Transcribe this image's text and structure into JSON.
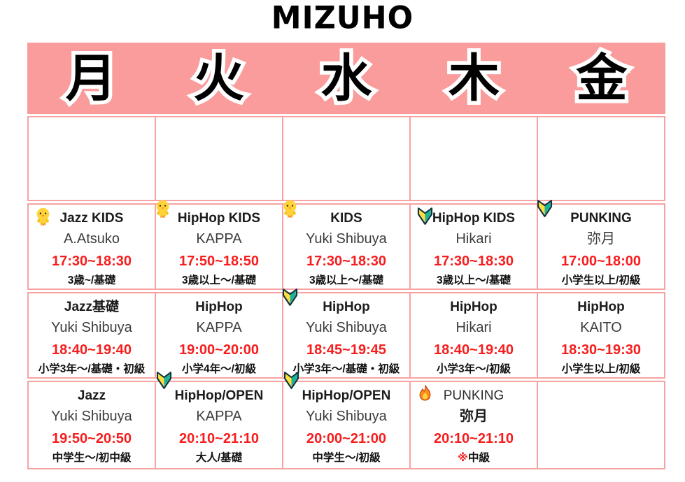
{
  "title": "MIZUHO",
  "days": [
    "月",
    "火",
    "水",
    "木",
    "金"
  ],
  "colors": {
    "banner_pink": "#FA9C9C",
    "grid_border_pink": "#F9A2A2",
    "time_red": "#F71D1D"
  },
  "schedule": {
    "rows": [
      {
        "cells": [
          {},
          {},
          {},
          {},
          {}
        ]
      },
      {
        "cells": [
          {
            "icon": "chick",
            "icon_pos": "in",
            "title": "Jazz KIDS",
            "instructor": "A.Atsuko",
            "time": "17:30~18:30",
            "level": "3歳~/基礎"
          },
          {
            "icon": "chick",
            "icon_pos": "corner",
            "title": "HipHop KIDS",
            "instructor": "KAPPA",
            "time": "17:50~18:50",
            "level": "3歳以上〜/基礎"
          },
          {
            "icon": "chick",
            "icon_pos": "corner",
            "title": "KIDS",
            "instructor": "Yuki Shibuya",
            "time": "17:30~18:30",
            "level": "3歳以上〜/基礎"
          },
          {
            "icon": "beginner",
            "icon_pos": "in",
            "title": "HipHop KIDS",
            "instructor": "Hikari",
            "time": "17:30~18:30",
            "level": "3歳以上〜/基礎"
          },
          {
            "icon": "beginner",
            "icon_pos": "corner",
            "title": "PUNKING",
            "instructor": "弥月",
            "time": "17:00~18:00",
            "level": "小学生以上/初級"
          }
        ]
      },
      {
        "cells": [
          {
            "title": "Jazz基礎",
            "instructor": "Yuki Shibuya",
            "time": "18:40~19:40",
            "level": "小学3年〜/基礎・初級"
          },
          {
            "title": "HipHop",
            "instructor": "KAPPA",
            "time": "19:00~20:00",
            "level": "小学4年〜/初級"
          },
          {
            "icon": "beginner",
            "icon_pos": "corner",
            "title": "HipHop",
            "instructor": "Yuki Shibuya",
            "time": "18:45~19:45",
            "level": "小学3年〜/基礎・初級"
          },
          {
            "title": "HipHop",
            "instructor": "Hikari",
            "time": "18:40~19:40",
            "level": "小学3年〜/初級"
          },
          {
            "title": "HipHop",
            "instructor": "KAITO",
            "time": "18:30~19:30",
            "level": "小学生以上/初級"
          }
        ]
      },
      {
        "cells": [
          {
            "title": "Jazz",
            "instructor": "Yuki Shibuya",
            "time": "19:50~20:50",
            "level": "中学生〜/初中級"
          },
          {
            "icon": "beginner",
            "icon_pos": "raised",
            "title": "HipHop/OPEN",
            "instructor": "KAPPA",
            "time": "20:10~21:10",
            "level": "大人/基礎"
          },
          {
            "icon": "beginner",
            "icon_pos": "raised",
            "title": "HipHop/OPEN",
            "instructor": "Yuki Shibuya",
            "time": "20:00~21:00",
            "level": "中学生〜/初級"
          },
          {
            "icon": "fire",
            "icon_pos": "in",
            "title": "PUNKING",
            "title_style": "light",
            "instructor": "弥月",
            "instructor_style": "bold",
            "time": "20:10~21:10",
            "level": "※中級",
            "level_mark_red": true
          },
          {}
        ]
      }
    ]
  }
}
